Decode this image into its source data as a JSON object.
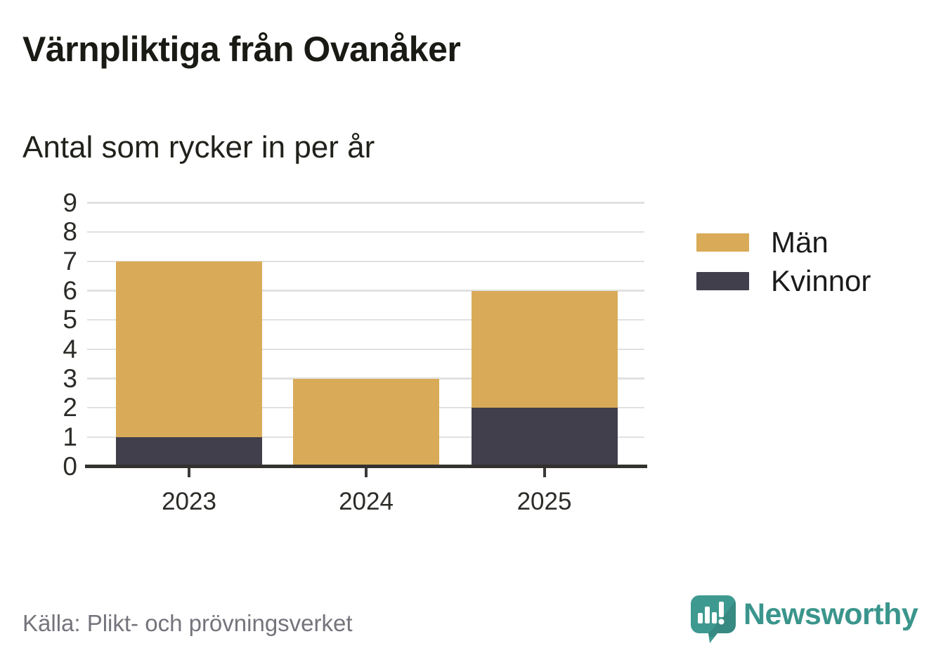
{
  "title": "Värnpliktiga från Ovanåker",
  "subtitle": "Antal som rycker in per år",
  "source": "Källa: Plikt- och prövningsverket",
  "brand": "Newsworthy",
  "chart_data": {
    "type": "bar",
    "stacked": true,
    "title": "Värnpliktiga från Ovanåker",
    "subtitle": "Antal som rycker in per år",
    "categories": [
      "2023",
      "2024",
      "2025"
    ],
    "series": [
      {
        "name": "Män",
        "color": "#d9ab58",
        "values": [
          6,
          3,
          4
        ]
      },
      {
        "name": "Kvinnor",
        "color": "#413f4c",
        "values": [
          1,
          0,
          2
        ]
      }
    ],
    "stack_bottom_to_top": [
      "Kvinnor",
      "Män"
    ],
    "totals": [
      7,
      3,
      6
    ],
    "xlabel": "",
    "ylabel": "",
    "ylim": [
      0,
      9
    ],
    "yticks": [
      0,
      1,
      2,
      3,
      4,
      5,
      6,
      7,
      8,
      9
    ],
    "grid": true,
    "legend_position": "right",
    "source": "Källa: Plikt- och prövningsverket"
  },
  "colors": {
    "axis": "#34322f",
    "gridline": "#e1e1e1",
    "tick_text": "#2b2b28",
    "source_text": "#74747c",
    "brand_teal": "#3a958c"
  }
}
